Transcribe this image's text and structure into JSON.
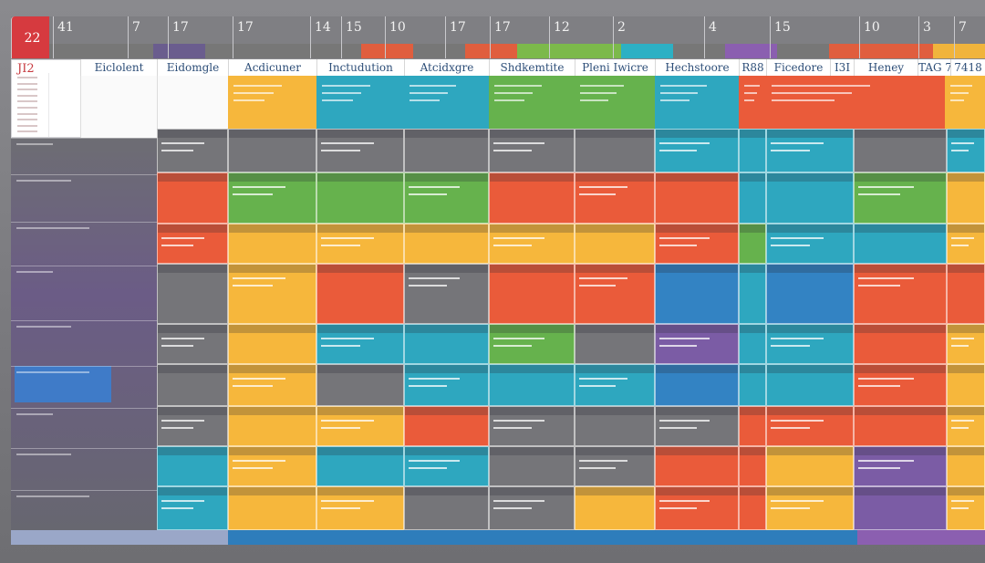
{
  "ruler": {
    "today": "22",
    "days": [
      "41",
      "7",
      "17",
      "17",
      "14",
      "15",
      "10",
      "17",
      "17",
      "12",
      "2",
      "4",
      "15",
      "10",
      "3",
      "7"
    ]
  },
  "mini_calendar": {
    "month_label": "JI2"
  },
  "columns": [
    {
      "label": "Eiclolent",
      "color": "#ffffff"
    },
    {
      "label": "Eidomgle",
      "color": "#ffffff"
    },
    {
      "label": "Acdicuner",
      "color": "#f6b73c"
    },
    {
      "label": "Inctudution",
      "color": "#2fb0c5"
    },
    {
      "label": "Atcidxgre",
      "color": "#35b4c6"
    },
    {
      "label": "Shdkemtite",
      "color": "#7cb94b"
    },
    {
      "label": "Pleni Iwicre",
      "color": "#7cb94b"
    },
    {
      "label": "Hechstoore",
      "color": "#31a9c8"
    },
    {
      "label": "R88",
      "color": "#ea5b3a"
    },
    {
      "label": "Ficedore",
      "color": "#ea5b3a"
    },
    {
      "label": "I3I",
      "color": "#ea5b3a"
    },
    {
      "label": "Heney",
      "color": "#ea5b3a"
    },
    {
      "label": "TAG 7",
      "color": "#ea5b3a"
    },
    {
      "label": "7418",
      "color": "#f6b73c"
    }
  ],
  "ruler_strip_colors": [
    "#777",
    "#777",
    "#6a5d8e",
    "#777",
    "#777",
    "#777",
    "#e05e3e",
    "#777",
    "#e05e3e",
    "#7cb94b",
    "#7cb94b",
    "#2db0c4",
    "#777",
    "#8b5fb0",
    "#777",
    "#e05e3e",
    "#e05e3e",
    "#f0b43c"
  ],
  "bottom_bar_colors": [
    "#9aa7c8",
    "#2e7dbb",
    "#2e7dbb",
    "#8b5fb0"
  ],
  "rail_block_label": "",
  "colors": {
    "grey": "#757579",
    "orange": "#ea5b3a",
    "yellow": "#f6b73c",
    "green": "#66b24d",
    "teal": "#2ea7bf",
    "blue": "#3383c3",
    "purple": "#7b5ca5",
    "red": "#d94c42"
  }
}
